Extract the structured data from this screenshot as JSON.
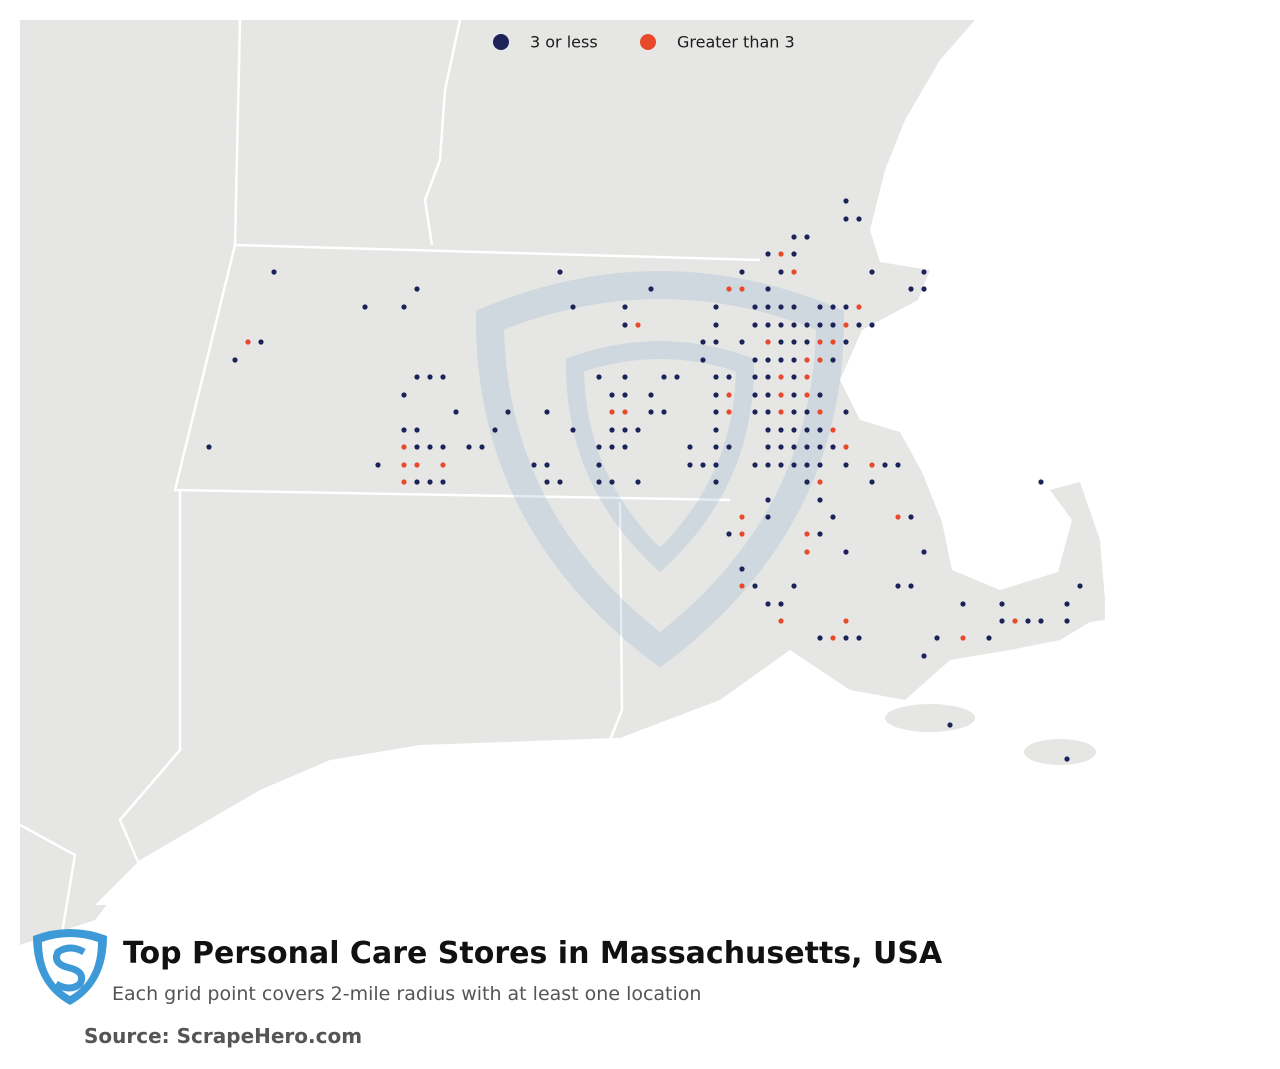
{
  "legend": {
    "items": [
      "3 or less",
      "Greater than 3"
    ]
  },
  "footer": {
    "title": "Top Personal Care Stores in Massachusetts, USA",
    "subtitle": "Each grid point covers 2-mile radius with at least one location",
    "source": "Source: ScrapeHero.com"
  }
}
